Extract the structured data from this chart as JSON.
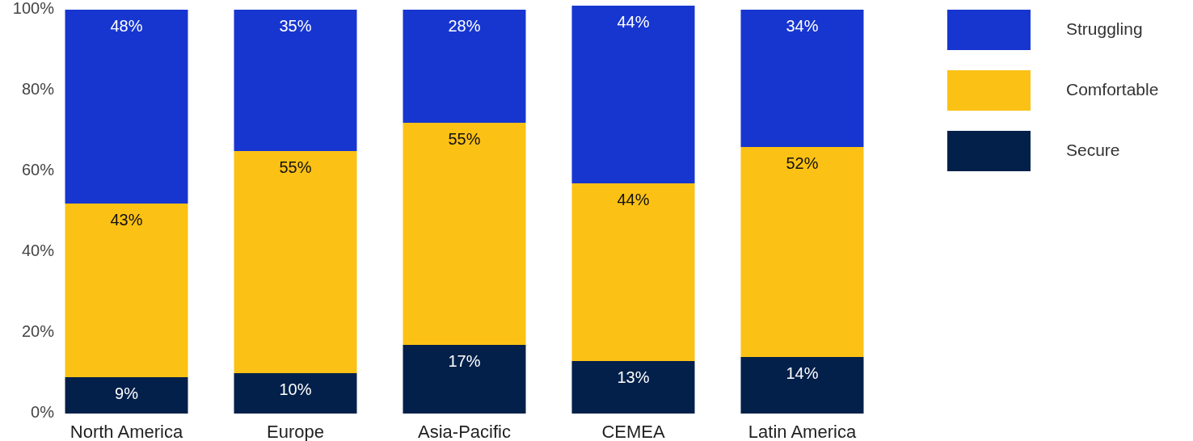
{
  "chart_data": {
    "type": "bar",
    "stacked": true,
    "categories": [
      "North America",
      "Europe",
      "Asia-Pacific",
      "CEMEA",
      "Latin America"
    ],
    "series": [
      {
        "name": "Secure",
        "color": "#03204a",
        "values": [
          9,
          10,
          17,
          13,
          14
        ],
        "value_labels": [
          "9%",
          "10%",
          "17%",
          "13%",
          "14%"
        ]
      },
      {
        "name": "Comfortable",
        "color": "#fbc115",
        "values": [
          43,
          55,
          55,
          44,
          52
        ],
        "value_labels": [
          "43%",
          "55%",
          "55%",
          "44%",
          "52%"
        ]
      },
      {
        "name": "Struggling",
        "color": "#1736d0",
        "values": [
          48,
          35,
          28,
          44,
          34
        ],
        "value_labels": [
          "48%",
          "35%",
          "28%",
          "44%",
          "34%"
        ]
      }
    ],
    "ylim": [
      0,
      101
    ],
    "yticks": [
      {
        "value": 0,
        "label": "0%"
      },
      {
        "value": 20,
        "label": "20%"
      },
      {
        "value": 40,
        "label": "40%"
      },
      {
        "value": 60,
        "label": "60%"
      },
      {
        "value": 80,
        "label": "80%"
      },
      {
        "value": 100,
        "label": "100%"
      }
    ],
    "legend": "right"
  }
}
